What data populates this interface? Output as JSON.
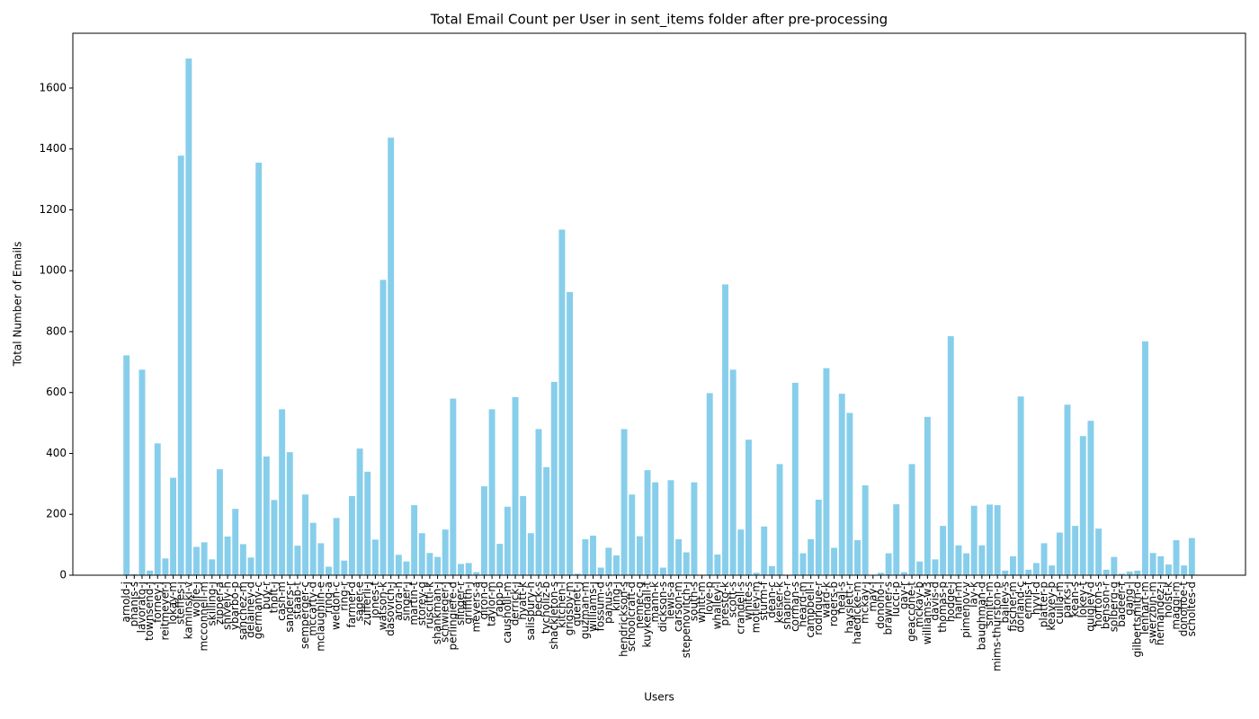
{
  "chart_data": {
    "type": "bar",
    "title": "Total Email Count per User in sent_items folder after pre-processing",
    "x_label": "Users",
    "y_label": "Total Number of Emails",
    "color": "#87ceeb",
    "ylim": [
      0,
      1780
    ],
    "yticks": [
      0,
      200,
      400,
      600,
      800,
      1000,
      1200,
      1400,
      1600
    ],
    "categories": [
      "arnold-j",
      "phanis-s",
      "lavorato-j",
      "townsend-j",
      "forney-j",
      "reitmeyer-j",
      "lokay-m",
      "steffes-j",
      "kaminski-v",
      "wolfe-j",
      "mcconnell-m",
      "skilling-j",
      "zipper-a",
      "shively-h",
      "ybarbo-p",
      "sanchez-m",
      "delainey-d",
      "germany-c",
      "buy-r",
      "tholt-j",
      "cash-m",
      "sanders-r",
      "staab-t",
      "semperger-c",
      "mccarty-d",
      "mclaughlin-e",
      "ring-a",
      "weldon-c",
      "ring-r",
      "farmer-d",
      "sager-e",
      "zufferli-j",
      "jones-t",
      "watson-k",
      "dasovich-j",
      "arora-h",
      "singer-j",
      "martin-t",
      "storey-g",
      "ruscitti-k",
      "shankman-j",
      "schwieger-j",
      "perlingiere-d",
      "slinger-r",
      "griffith-j",
      "meyers-a",
      "giron-d",
      "taylor-m",
      "rapp-b",
      "causholli-m",
      "derrick-j",
      "hyatt-k",
      "salisbury-h",
      "beck-s",
      "tycholiz-b",
      "shackleton-s",
      "kitchen-l",
      "grigsby-m",
      "quenet-j",
      "guzman-m",
      "williams-j",
      "fossum-d",
      "panus-s",
      "king-j",
      "hendrickson-s",
      "schoolcraft-d",
      "nemec-g",
      "kuykendall-t",
      "mann-k",
      "dickson-s",
      "lewis-a",
      "carson-m",
      "stepenovitch-j",
      "south-s",
      "whitt-m",
      "love-p",
      "whalley-l",
      "presto-k",
      "scott-s",
      "crandell-s",
      "white-s",
      "motley-m",
      "sturm-f",
      "dean-c",
      "keiser-k",
      "shapiro-r",
      "corman-s",
      "heard-m",
      "campbell-l",
      "rodrique-r",
      "ward-k",
      "rogers-b",
      "neal-s",
      "hayslett-r",
      "haedicke-m",
      "mckay-j",
      "may-l",
      "donoho-l",
      "brawner-s",
      "lucci-p",
      "gay-r",
      "geaccone-t",
      "mckay-b",
      "williams-w3",
      "davis-d",
      "thomas-p",
      "hodge-j",
      "hain-m",
      "pimenov-v",
      "lay-k",
      "baughman-d",
      "smith-m",
      "mims-thurston-p",
      "bailey-s",
      "fischer-m",
      "dorland-c",
      "ermis-f",
      "hyvl-d",
      "platter-p",
      "keavey-p",
      "cuilla-m",
      "parks-j",
      "kean-s",
      "lokey-t",
      "quigley-d",
      "horton-s",
      "benson-r",
      "solberg-g",
      "badeer-r",
      "gang-l",
      "gilbertsmith-d",
      "lenhart-m",
      "swerzbin-m",
      "hernandez-j",
      "holst-k",
      "maggi-m",
      "donohoe-t",
      "scholtes-d"
    ],
    "values": [
      722,
      3,
      675,
      15,
      433,
      55,
      320,
      1378,
      1697,
      93,
      108,
      52,
      348,
      127,
      218,
      102,
      58,
      1355,
      390,
      247,
      545,
      404,
      97,
      265,
      172,
      105,
      28,
      188,
      48,
      260,
      416,
      340,
      117,
      970,
      1437,
      67,
      45,
      230,
      138,
      73,
      60,
      150,
      580,
      37,
      40,
      10,
      292,
      545,
      103,
      225,
      585,
      260,
      138,
      480,
      355,
      635,
      1135,
      930,
      5,
      118,
      130,
      25,
      90,
      65,
      480,
      265,
      128,
      345,
      305,
      25,
      312,
      118,
      75,
      305,
      0,
      598,
      68,
      955,
      675,
      150,
      445,
      8,
      160,
      30,
      365,
      0,
      632,
      72,
      118,
      248,
      680,
      90,
      596,
      533,
      115,
      295,
      0,
      8,
      72,
      233,
      10,
      365,
      45,
      520,
      52,
      162,
      785,
      98,
      72,
      228,
      98,
      232,
      230,
      15,
      62,
      587,
      18,
      40,
      105,
      32,
      140,
      560,
      162,
      457,
      507,
      153,
      18,
      60,
      5,
      12,
      15,
      768,
      73,
      62,
      35,
      115,
      32,
      122
    ]
  }
}
